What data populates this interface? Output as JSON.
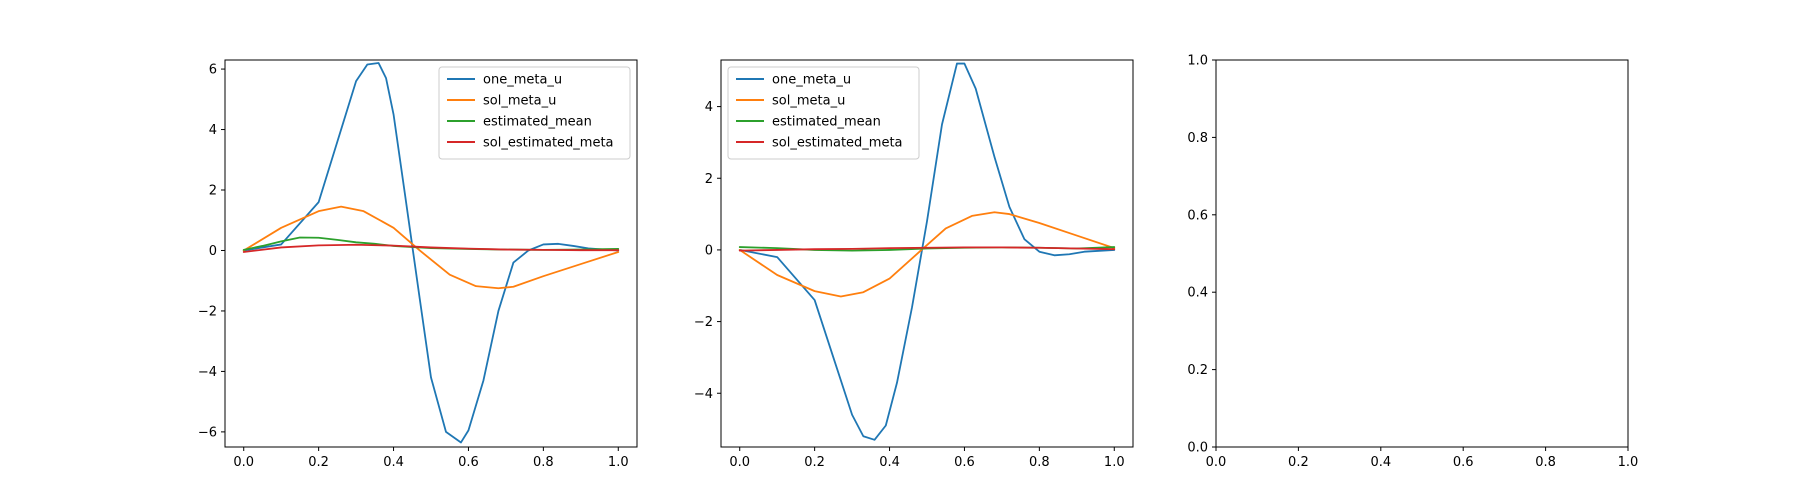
{
  "chart_data": [
    {
      "type": "line",
      "xlim": [
        -0.05,
        1.05
      ],
      "ylim": [
        -6.5,
        6.3
      ],
      "xticks": [
        "0.0",
        "0.2",
        "0.4",
        "0.6",
        "0.8",
        "1.0"
      ],
      "yticks": [
        "−6",
        "−4",
        "−2",
        "0",
        "2",
        "4",
        "6"
      ],
      "grid": false,
      "legend_position": "top-right",
      "series": [
        {
          "name": "one_meta_u",
          "color": "#1f77b4",
          "x": [
            0.0,
            0.1,
            0.2,
            0.25,
            0.3,
            0.33,
            0.36,
            0.38,
            0.4,
            0.43,
            0.47,
            0.5,
            0.54,
            0.58,
            0.6,
            0.64,
            0.68,
            0.72,
            0.76,
            0.8,
            0.84,
            0.88,
            0.92,
            1.0
          ],
          "y": [
            0.0,
            0.2,
            1.6,
            3.6,
            5.6,
            6.15,
            6.2,
            5.7,
            4.5,
            1.9,
            -1.6,
            -4.2,
            -6.0,
            -6.35,
            -5.95,
            -4.3,
            -2.0,
            -0.4,
            0.0,
            0.2,
            0.22,
            0.15,
            0.07,
            0.0
          ]
        },
        {
          "name": "sol_meta_u",
          "color": "#ff7f0e",
          "x": [
            0.0,
            0.1,
            0.2,
            0.26,
            0.32,
            0.4,
            0.47,
            0.55,
            0.62,
            0.68,
            0.72,
            0.8,
            0.9,
            1.0
          ],
          "y": [
            0.0,
            0.75,
            1.3,
            1.45,
            1.3,
            0.75,
            0.0,
            -0.8,
            -1.18,
            -1.25,
            -1.2,
            -0.85,
            -0.45,
            -0.05
          ]
        },
        {
          "name": "estimated_mean",
          "color": "#2ca02c",
          "x": [
            0.0,
            0.05,
            0.1,
            0.15,
            0.2,
            0.25,
            0.3,
            0.35,
            0.4,
            0.5,
            0.6,
            0.7,
            0.8,
            0.9,
            1.0
          ],
          "y": [
            0.02,
            0.15,
            0.3,
            0.43,
            0.42,
            0.35,
            0.27,
            0.22,
            0.15,
            0.08,
            0.05,
            0.03,
            0.02,
            0.03,
            0.05
          ]
        },
        {
          "name": "sol_estimated_meta",
          "color": "#d62728",
          "x": [
            0.0,
            0.1,
            0.2,
            0.3,
            0.4,
            0.5,
            0.6,
            0.7,
            0.8,
            0.9,
            1.0
          ],
          "y": [
            -0.05,
            0.1,
            0.17,
            0.19,
            0.16,
            0.1,
            0.06,
            0.03,
            0.02,
            0.01,
            0.01
          ]
        }
      ]
    },
    {
      "type": "line",
      "xlim": [
        -0.05,
        1.05
      ],
      "ylim": [
        -5.5,
        5.3
      ],
      "xticks": [
        "0.0",
        "0.2",
        "0.4",
        "0.6",
        "0.8",
        "1.0"
      ],
      "yticks": [
        "−4",
        "−2",
        "0",
        "2",
        "4"
      ],
      "grid": false,
      "legend_position": "top-left",
      "series": [
        {
          "name": "one_meta_u",
          "color": "#1f77b4",
          "x": [
            0.0,
            0.1,
            0.2,
            0.25,
            0.3,
            0.33,
            0.36,
            0.39,
            0.42,
            0.46,
            0.5,
            0.54,
            0.58,
            0.6,
            0.63,
            0.68,
            0.72,
            0.76,
            0.8,
            0.84,
            0.88,
            0.92,
            1.0
          ],
          "y": [
            0.0,
            -0.2,
            -1.4,
            -3.0,
            -4.6,
            -5.2,
            -5.3,
            -4.9,
            -3.7,
            -1.6,
            0.8,
            3.5,
            5.2,
            5.2,
            4.5,
            2.6,
            1.2,
            0.3,
            -0.05,
            -0.15,
            -0.12,
            -0.05,
            0.0
          ]
        },
        {
          "name": "sol_meta_u",
          "color": "#ff7f0e",
          "x": [
            0.0,
            0.1,
            0.2,
            0.27,
            0.33,
            0.4,
            0.48,
            0.55,
            0.62,
            0.68,
            0.72,
            0.8,
            0.9,
            1.0
          ],
          "y": [
            0.0,
            -0.7,
            -1.15,
            -1.3,
            -1.18,
            -0.8,
            -0.05,
            0.6,
            0.95,
            1.05,
            1.0,
            0.75,
            0.4,
            0.05
          ]
        },
        {
          "name": "estimated_mean",
          "color": "#2ca02c",
          "x": [
            0.0,
            0.1,
            0.2,
            0.3,
            0.4,
            0.5,
            0.6,
            0.7,
            0.8,
            0.9,
            1.0
          ],
          "y": [
            0.08,
            0.05,
            0.0,
            -0.02,
            0.0,
            0.04,
            0.06,
            0.07,
            0.06,
            0.04,
            0.08
          ]
        },
        {
          "name": "sol_estimated_meta",
          "color": "#d62728",
          "x": [
            0.0,
            0.1,
            0.2,
            0.3,
            0.4,
            0.5,
            0.6,
            0.7,
            0.8,
            0.9,
            1.0
          ],
          "y": [
            -0.02,
            0.0,
            0.02,
            0.03,
            0.05,
            0.06,
            0.07,
            0.07,
            0.06,
            0.04,
            0.02
          ]
        }
      ]
    },
    {
      "type": "line",
      "xlim": [
        0,
        1
      ],
      "ylim": [
        0,
        1
      ],
      "xticks": [
        "0.0",
        "0.2",
        "0.4",
        "0.6",
        "0.8",
        "1.0"
      ],
      "yticks": [
        "0.0",
        "0.2",
        "0.4",
        "0.6",
        "0.8",
        "1.0"
      ],
      "grid": false,
      "series": []
    }
  ]
}
